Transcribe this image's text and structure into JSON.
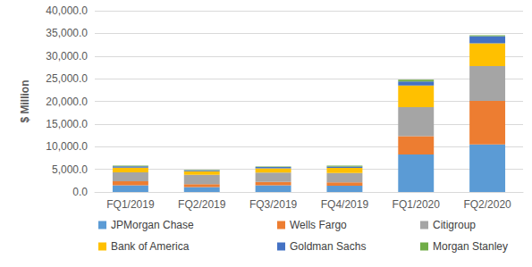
{
  "chart_data": {
    "type": "bar",
    "stacked": true,
    "grid": true,
    "legend": "bottom",
    "y_label": "$ Million",
    "categories": [
      "FQ1/2019",
      "FQ2/2019",
      "FQ3/2019",
      "FQ4/2019",
      "FQ1/2020",
      "FQ2/2020"
    ],
    "ylim": [
      0,
      40000
    ],
    "yticks": [
      {
        "value": 0,
        "label": "0.0"
      },
      {
        "value": 5000,
        "label": "5,000.0"
      },
      {
        "value": 10000,
        "label": "10,000.0"
      },
      {
        "value": 15000,
        "label": "15,000.0"
      },
      {
        "value": 20000,
        "label": "20,000.0"
      },
      {
        "value": 25000,
        "label": "25,000.0"
      },
      {
        "value": 30000,
        "label": "30,000.0"
      },
      {
        "value": 35000,
        "label": "35,000.0"
      },
      {
        "value": 40000,
        "label": "40,000.0"
      }
    ],
    "series": [
      {
        "name": "JPMorgan Chase",
        "color": "#5B9BD5",
        "values": [
          1500,
          1100,
          1500,
          1400,
          8300,
          10500
        ]
      },
      {
        "name": "Wells Fargo",
        "color": "#ED7D31",
        "values": [
          850,
          600,
          700,
          700,
          4000,
          9600
        ]
      },
      {
        "name": "Citigroup",
        "color": "#A5A5A5",
        "values": [
          2000,
          2100,
          2100,
          2100,
          6400,
          7700
        ]
      },
      {
        "name": "Bank of America",
        "color": "#FFC000",
        "values": [
          1000,
          800,
          900,
          1100,
          4800,
          5000
        ]
      },
      {
        "name": "Goldman Sachs",
        "color": "#4472C4",
        "values": [
          300,
          200,
          300,
          300,
          900,
          1600
        ]
      },
      {
        "name": "Morgan Stanley",
        "color": "#70AD47",
        "values": [
          150,
          100,
          100,
          200,
          400,
          200
        ]
      }
    ]
  }
}
